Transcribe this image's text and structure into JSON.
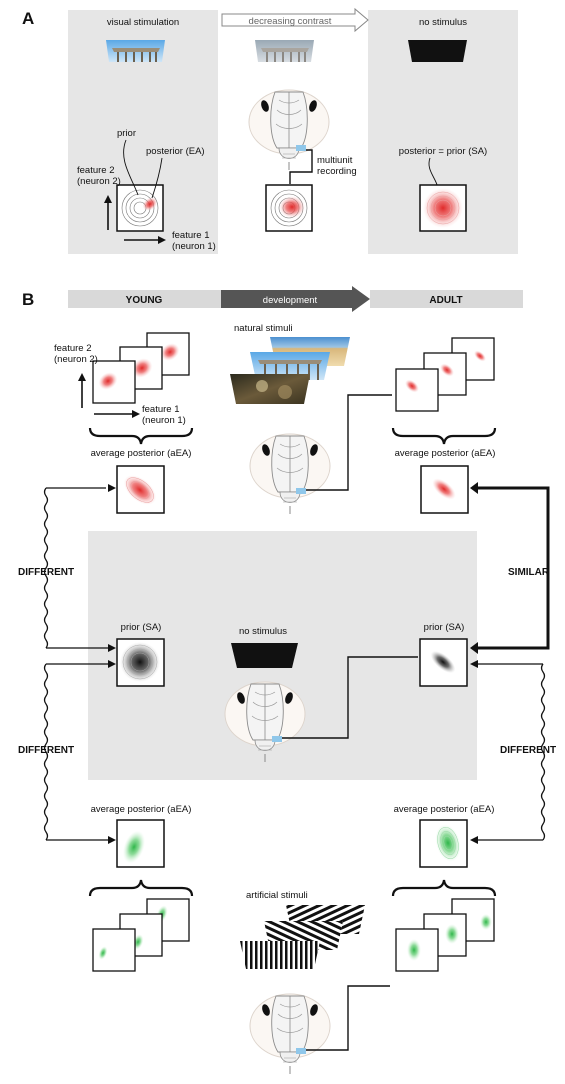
{
  "panel_a": {
    "letter": "A",
    "stage_visual": "visual stimulation",
    "stage_contrast": "decreasing contrast",
    "stage_none": "no stimulus",
    "prior_label": "prior",
    "posterior_label": "posterior (EA)",
    "feature2_label": "feature 2",
    "feature2_sub": "(neuron 2)",
    "feature1_label": "feature 1",
    "feature1_sub": "(neuron 1)",
    "recording_label_1": "multiunit",
    "recording_label_2": "recording",
    "posterior_prior_label": "posterior = prior (SA)"
  },
  "panel_b": {
    "letter": "B",
    "young": "YOUNG",
    "development": "development",
    "adult": "ADULT",
    "natural_stimuli": "natural stimuli",
    "feature2_label": "feature 2",
    "feature2_sub": "(neuron 2)",
    "feature1_label": "feature 1",
    "feature1_sub": "(neuron 1)",
    "avg_post_young": "average posterior (aEA)",
    "avg_post_adult": "average posterior (aEA)",
    "different_left_1": "DIFFERENT",
    "similar_right": "SIMILAR",
    "prior_young": "prior (SA)",
    "no_stimulus": "no stimulus",
    "prior_adult": "prior (SA)",
    "different_left_2": "DIFFERENT",
    "different_right": "DIFFERENT",
    "avg_post_young_art": "average posterior (aEA)",
    "avg_post_adult_art": "average posterior (aEA)",
    "artificial_stimuli": "artificial stimuli"
  },
  "colors": {
    "panel_bg": "#e6e6e6",
    "header_bar": "#d9d9d9",
    "dev_arrow": "#555555",
    "red": "#e02a2a",
    "green": "#2fb64a",
    "black": "#111111",
    "recording_mark": "#8fc7ea"
  }
}
